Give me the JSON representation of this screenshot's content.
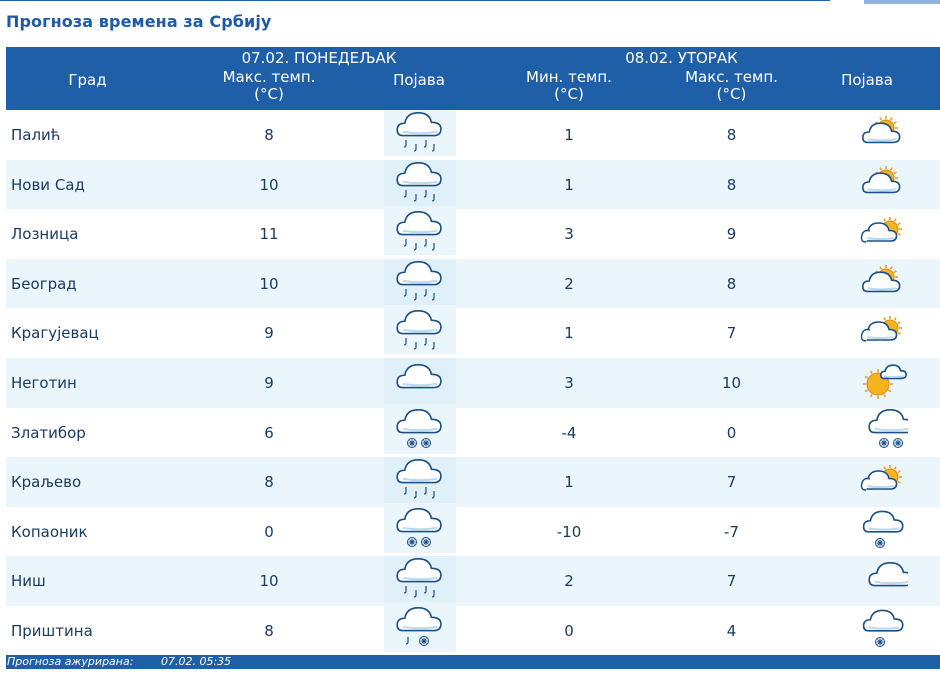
{
  "title": "Прогноза времена за Србију",
  "header": {
    "city": "Град",
    "day1": "07.02. ПОНЕДЕЉАК",
    "day2": "08.02. УТОРАК",
    "max_temp": "Макс. темп. (°C)",
    "min_temp": "Мин. темп. (°C)",
    "phenomenon": "Појава"
  },
  "rows": [
    {
      "city": "Палић",
      "max1": "8",
      "icon1": "rain-cloud-icon",
      "min2": "1",
      "max2": "8",
      "icon2": "partly-cloudy-icon"
    },
    {
      "city": "Нови Сад",
      "max1": "10",
      "icon1": "rain-cloud-icon",
      "min2": "1",
      "max2": "8",
      "icon2": "partly-cloudy-icon"
    },
    {
      "city": "Лозница",
      "max1": "11",
      "icon1": "rain-cloud-icon",
      "min2": "3",
      "max2": "9",
      "icon2": "cloudy-sun-icon"
    },
    {
      "city": "Београд",
      "max1": "10",
      "icon1": "rain-cloud-icon",
      "min2": "2",
      "max2": "8",
      "icon2": "partly-cloudy-icon"
    },
    {
      "city": "Крагујевац",
      "max1": "9",
      "icon1": "rain-cloud-icon",
      "min2": "1",
      "max2": "7",
      "icon2": "cloudy-sun-icon"
    },
    {
      "city": "Неготин",
      "max1": "9",
      "icon1": "cloud-icon",
      "min2": "3",
      "max2": "10",
      "icon2": "mostly-sunny-icon"
    },
    {
      "city": "Златибор",
      "max1": "6",
      "icon1": "snow-cloud-icon",
      "min2": "-4",
      "max2": "0",
      "icon2": "snow-cloud-icon"
    },
    {
      "city": "Краљево",
      "max1": "8",
      "icon1": "rain-cloud-icon",
      "min2": "1",
      "max2": "7",
      "icon2": "cloudy-sun-icon"
    },
    {
      "city": "Копаоник",
      "max1": "0",
      "icon1": "snow-cloud-icon",
      "min2": "-10",
      "max2": "-7",
      "icon2": "light-snow-cloud-icon"
    },
    {
      "city": "Ниш",
      "max1": "10",
      "icon1": "rain-cloud-icon",
      "min2": "2",
      "max2": "7",
      "icon2": "cloud-icon"
    },
    {
      "city": "Приштина",
      "max1": "8",
      "icon1": "sleet-cloud-icon",
      "min2": "0",
      "max2": "4",
      "icon2": "light-snow-cloud-icon"
    }
  ],
  "footer": {
    "label": "Прогноза ажурирана:",
    "value": "07.02. 05:35"
  },
  "colors": {
    "header_bg": "#1f5fa8",
    "title": "#1e5aa6",
    "alt_row": "#eaf6fc",
    "text": "#1a3b63"
  }
}
